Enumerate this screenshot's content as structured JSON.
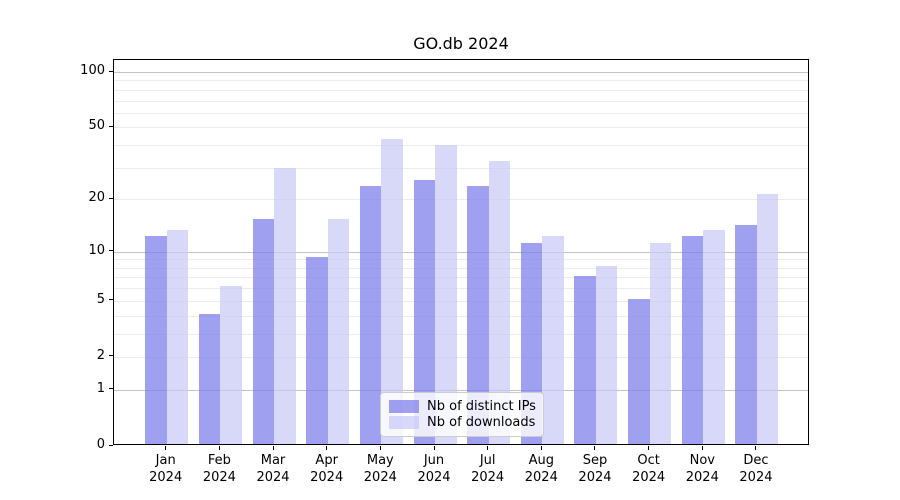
{
  "chart_data": {
    "type": "bar",
    "title": "GO.db 2024",
    "categories": [
      "Jan 2024",
      "Feb 2024",
      "Mar 2024",
      "Apr 2024",
      "May 2024",
      "Jun 2024",
      "Jul 2024",
      "Aug 2024",
      "Sep 2024",
      "Oct 2024",
      "Nov 2024",
      "Dec 2024"
    ],
    "series": [
      {
        "key": "distinct-ips",
        "name": "Nb of distinct IPs",
        "color": "rgba(124,124,235,0.72)",
        "values": [
          12,
          4,
          15,
          9,
          23,
          25,
          23,
          11,
          7,
          5,
          12,
          14
        ]
      },
      {
        "key": "downloads",
        "name": "Nb of downloads",
        "color": "rgba(199,199,245,0.70)",
        "values": [
          13,
          6,
          29,
          15,
          42,
          39,
          32,
          12,
          8,
          11,
          13,
          21
        ]
      }
    ],
    "xlabel": "",
    "ylabel": "",
    "yscale": "log1p",
    "ylim": [
      0,
      100
    ],
    "y_ticks": [
      0,
      1,
      2,
      5,
      10,
      20,
      50,
      100
    ],
    "y_major_gridlines": [
      1,
      10,
      100
    ],
    "y_minor_gridlines": [
      2,
      3,
      4,
      5,
      6,
      7,
      8,
      9,
      20,
      30,
      40,
      50,
      60,
      70,
      80,
      90
    ],
    "grid": true,
    "legend_position": "bottom-center"
  }
}
